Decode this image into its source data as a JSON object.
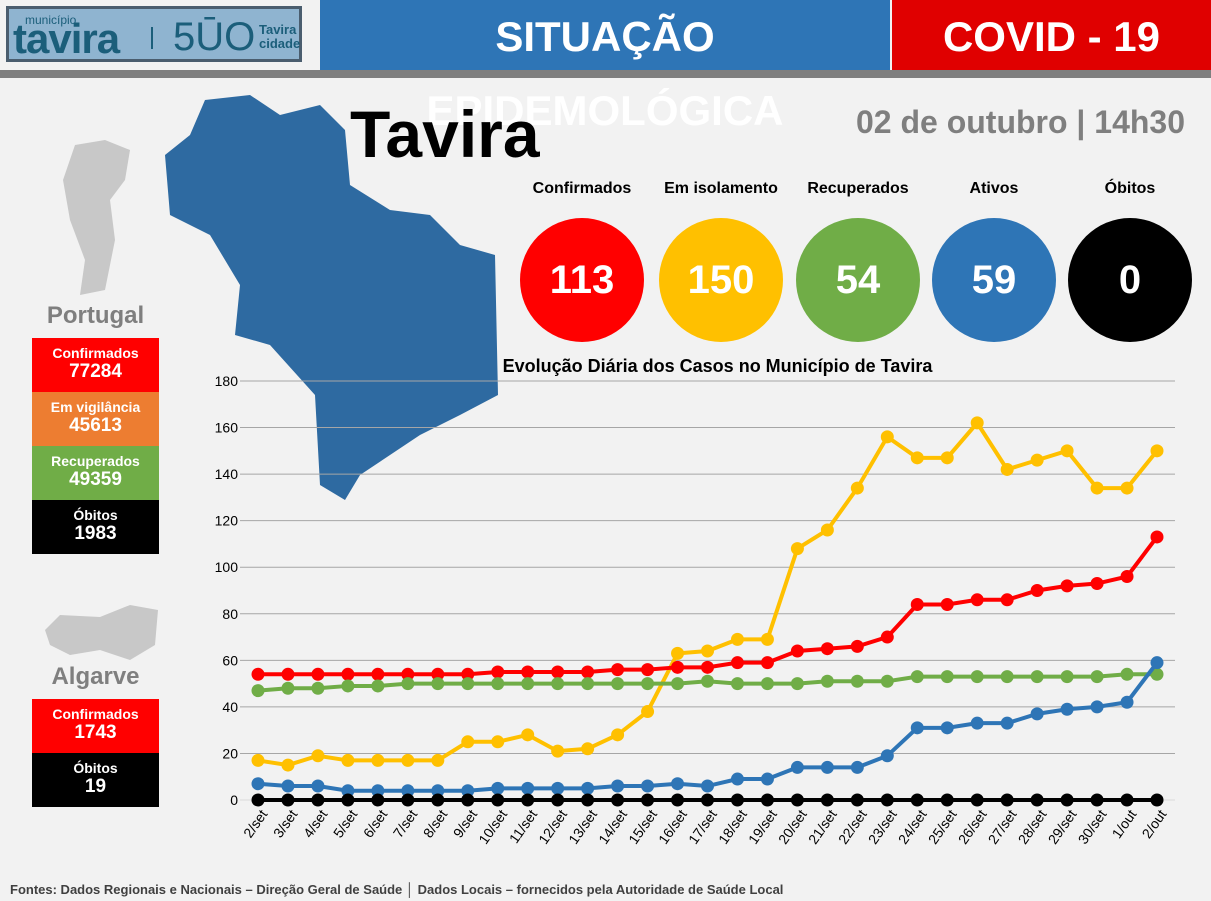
{
  "header": {
    "logo_municipio": "município",
    "logo_tavira": "tavira",
    "logo_500": "5ŪO",
    "logo_tavira_cidade_1": "Tavira",
    "logo_tavira_cidade_2": "cidade",
    "title": "SITUAÇÃO EPIDEMOLÓGICA",
    "covid": "COVID - 19"
  },
  "town": "Tavira",
  "date": "02 de outubro | 14h30",
  "stats": [
    {
      "label": "Confirmados",
      "value": "113",
      "color": "#ff0000"
    },
    {
      "label": "Em isolamento",
      "value": "150",
      "color": "#ffc000"
    },
    {
      "label": "Recuperados",
      "value": "54",
      "color": "#70ad47"
    },
    {
      "label": "Ativos",
      "value": "59",
      "color": "#2e75b6"
    },
    {
      "label": "Óbitos",
      "value": "0",
      "color": "#000000"
    }
  ],
  "portugal": {
    "name": "Portugal",
    "items": [
      {
        "label": "Confirmados",
        "value": "77284",
        "color": "#ff0000"
      },
      {
        "label": "Em vigilância",
        "value": "45613",
        "color": "#ed7d31"
      },
      {
        "label": "Recuperados",
        "value": "49359",
        "color": "#70ad47"
      },
      {
        "label": "Óbitos",
        "value": "1983",
        "color": "#000000"
      }
    ]
  },
  "algarve": {
    "name": "Algarve",
    "items": [
      {
        "label": "Confirmados",
        "value": "1743",
        "color": "#ff0000"
      },
      {
        "label": "Óbitos",
        "value": "19",
        "color": "#000000"
      }
    ]
  },
  "footer": "Fontes: Dados Regionais e Nacionais – Direção Geral de Saúde │ Dados Locais – fornecidos pela Autoridade de Saúde Local",
  "chart_data": {
    "type": "line",
    "title": "Evolução Diária dos Casos no Município de Tavira",
    "xlabel": "",
    "ylabel": "",
    "ylim": [
      0,
      180
    ],
    "yticks": [
      "0",
      "20",
      "40",
      "60",
      "80",
      "100",
      "120",
      "140",
      "160",
      "180"
    ],
    "grid": true,
    "categories": [
      "2/set",
      "3/set",
      "4/set",
      "5/set",
      "6/set",
      "7/set",
      "8/set",
      "9/set",
      "10/set",
      "11/set",
      "12/set",
      "13/set",
      "14/set",
      "15/set",
      "16/set",
      "17/set",
      "18/set",
      "19/set",
      "20/set",
      "21/set",
      "22/set",
      "23/set",
      "24/set",
      "25/set",
      "26/set",
      "27/set",
      "28/set",
      "29/set",
      "30/set",
      "1/out",
      "2/out"
    ],
    "series": [
      {
        "name": "Em isolamento",
        "color": "#ffc000",
        "values": [
          17,
          15,
          19,
          17,
          17,
          17,
          17,
          25,
          25,
          28,
          21,
          22,
          28,
          38,
          63,
          64,
          69,
          69,
          108,
          116,
          134,
          156,
          147,
          147,
          162,
          142,
          146,
          150,
          134,
          134,
          150
        ]
      },
      {
        "name": "Confirmados",
        "color": "#ff0000",
        "values": [
          54,
          54,
          54,
          54,
          54,
          54,
          54,
          54,
          55,
          55,
          55,
          55,
          56,
          56,
          57,
          57,
          59,
          59,
          64,
          65,
          66,
          70,
          84,
          84,
          86,
          86,
          90,
          92,
          93,
          96,
          113
        ]
      },
      {
        "name": "Recuperados",
        "color": "#70ad47",
        "values": [
          47,
          48,
          48,
          49,
          49,
          50,
          50,
          50,
          50,
          50,
          50,
          50,
          50,
          50,
          50,
          51,
          50,
          50,
          50,
          51,
          51,
          51,
          53,
          53,
          53,
          53,
          53,
          53,
          53,
          54,
          54
        ]
      },
      {
        "name": "Ativos",
        "color": "#2e75b6",
        "values": [
          7,
          6,
          6,
          4,
          4,
          4,
          4,
          4,
          5,
          5,
          5,
          5,
          6,
          6,
          7,
          6,
          9,
          9,
          14,
          14,
          14,
          19,
          31,
          31,
          33,
          33,
          37,
          39,
          40,
          42,
          59
        ]
      },
      {
        "name": "Óbitos",
        "color": "#000000",
        "values": [
          0,
          0,
          0,
          0,
          0,
          0,
          0,
          0,
          0,
          0,
          0,
          0,
          0,
          0,
          0,
          0,
          0,
          0,
          0,
          0,
          0,
          0,
          0,
          0,
          0,
          0,
          0,
          0,
          0,
          0,
          0
        ]
      }
    ]
  }
}
